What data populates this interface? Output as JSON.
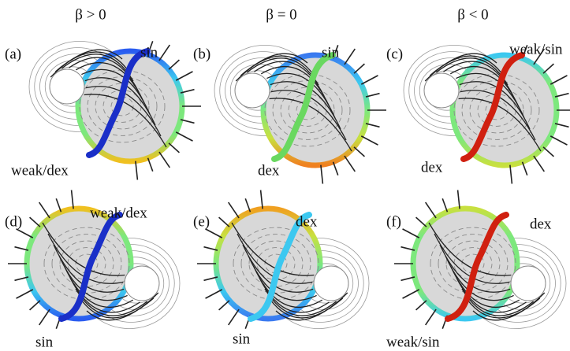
{
  "headers": [
    "β > 0",
    "β = 0",
    "β < 0"
  ],
  "panels": [
    {
      "label": "(a)",
      "annotations": [
        "sin",
        "weak/dex"
      ]
    },
    {
      "label": "(b)",
      "annotations": [
        "sin",
        "dex"
      ]
    },
    {
      "label": "(c)",
      "annotations": [
        "weak/sin",
        "dex"
      ]
    },
    {
      "label": "(d)",
      "annotations": [
        "weak/dex",
        "sin"
      ]
    },
    {
      "label": "(e)",
      "annotations": [
        "dex",
        "sin"
      ]
    },
    {
      "label": "(f)",
      "annotations": [
        "dex",
        "weak/sin"
      ]
    }
  ]
}
